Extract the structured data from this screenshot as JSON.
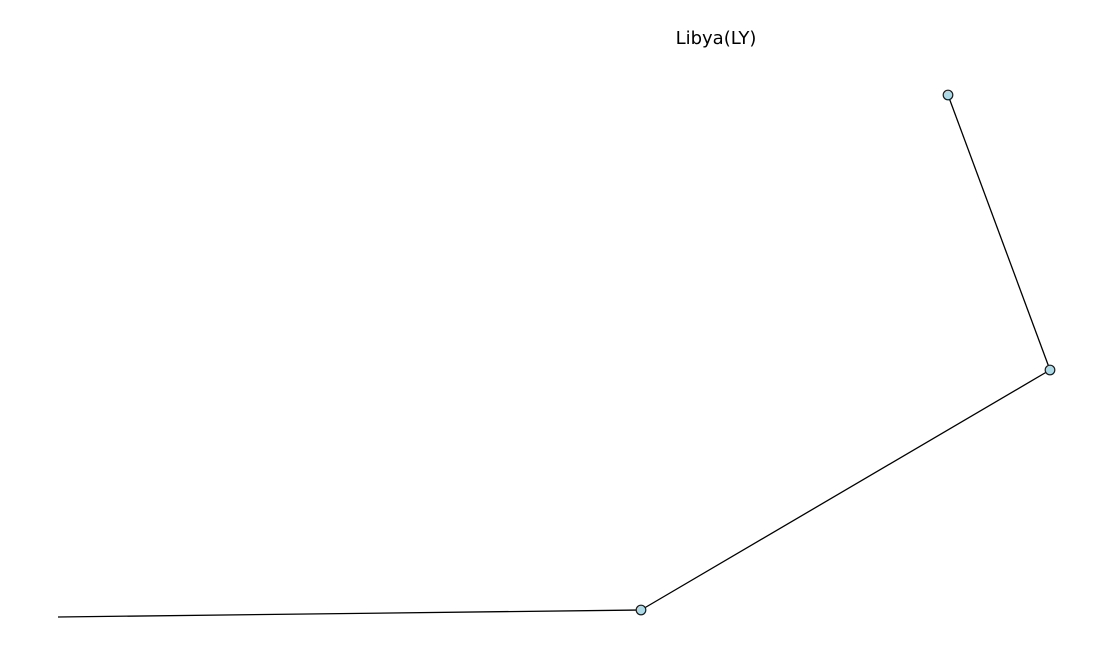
{
  "title": "Libya(LY)",
  "colors": {
    "edge": "#000000",
    "node_fill": "#add8e6",
    "node_stroke": "#1a1a1a",
    "background": "#ffffff"
  },
  "graph": {
    "nodes": [
      {
        "id": "n1"
      },
      {
        "id": "n2"
      },
      {
        "id": "n3"
      }
    ],
    "edges": [
      {
        "from": "n1",
        "to": "n2"
      },
      {
        "from": "n2",
        "to": "n3"
      },
      {
        "from": "n3",
        "to": "offscreen-left"
      }
    ]
  }
}
